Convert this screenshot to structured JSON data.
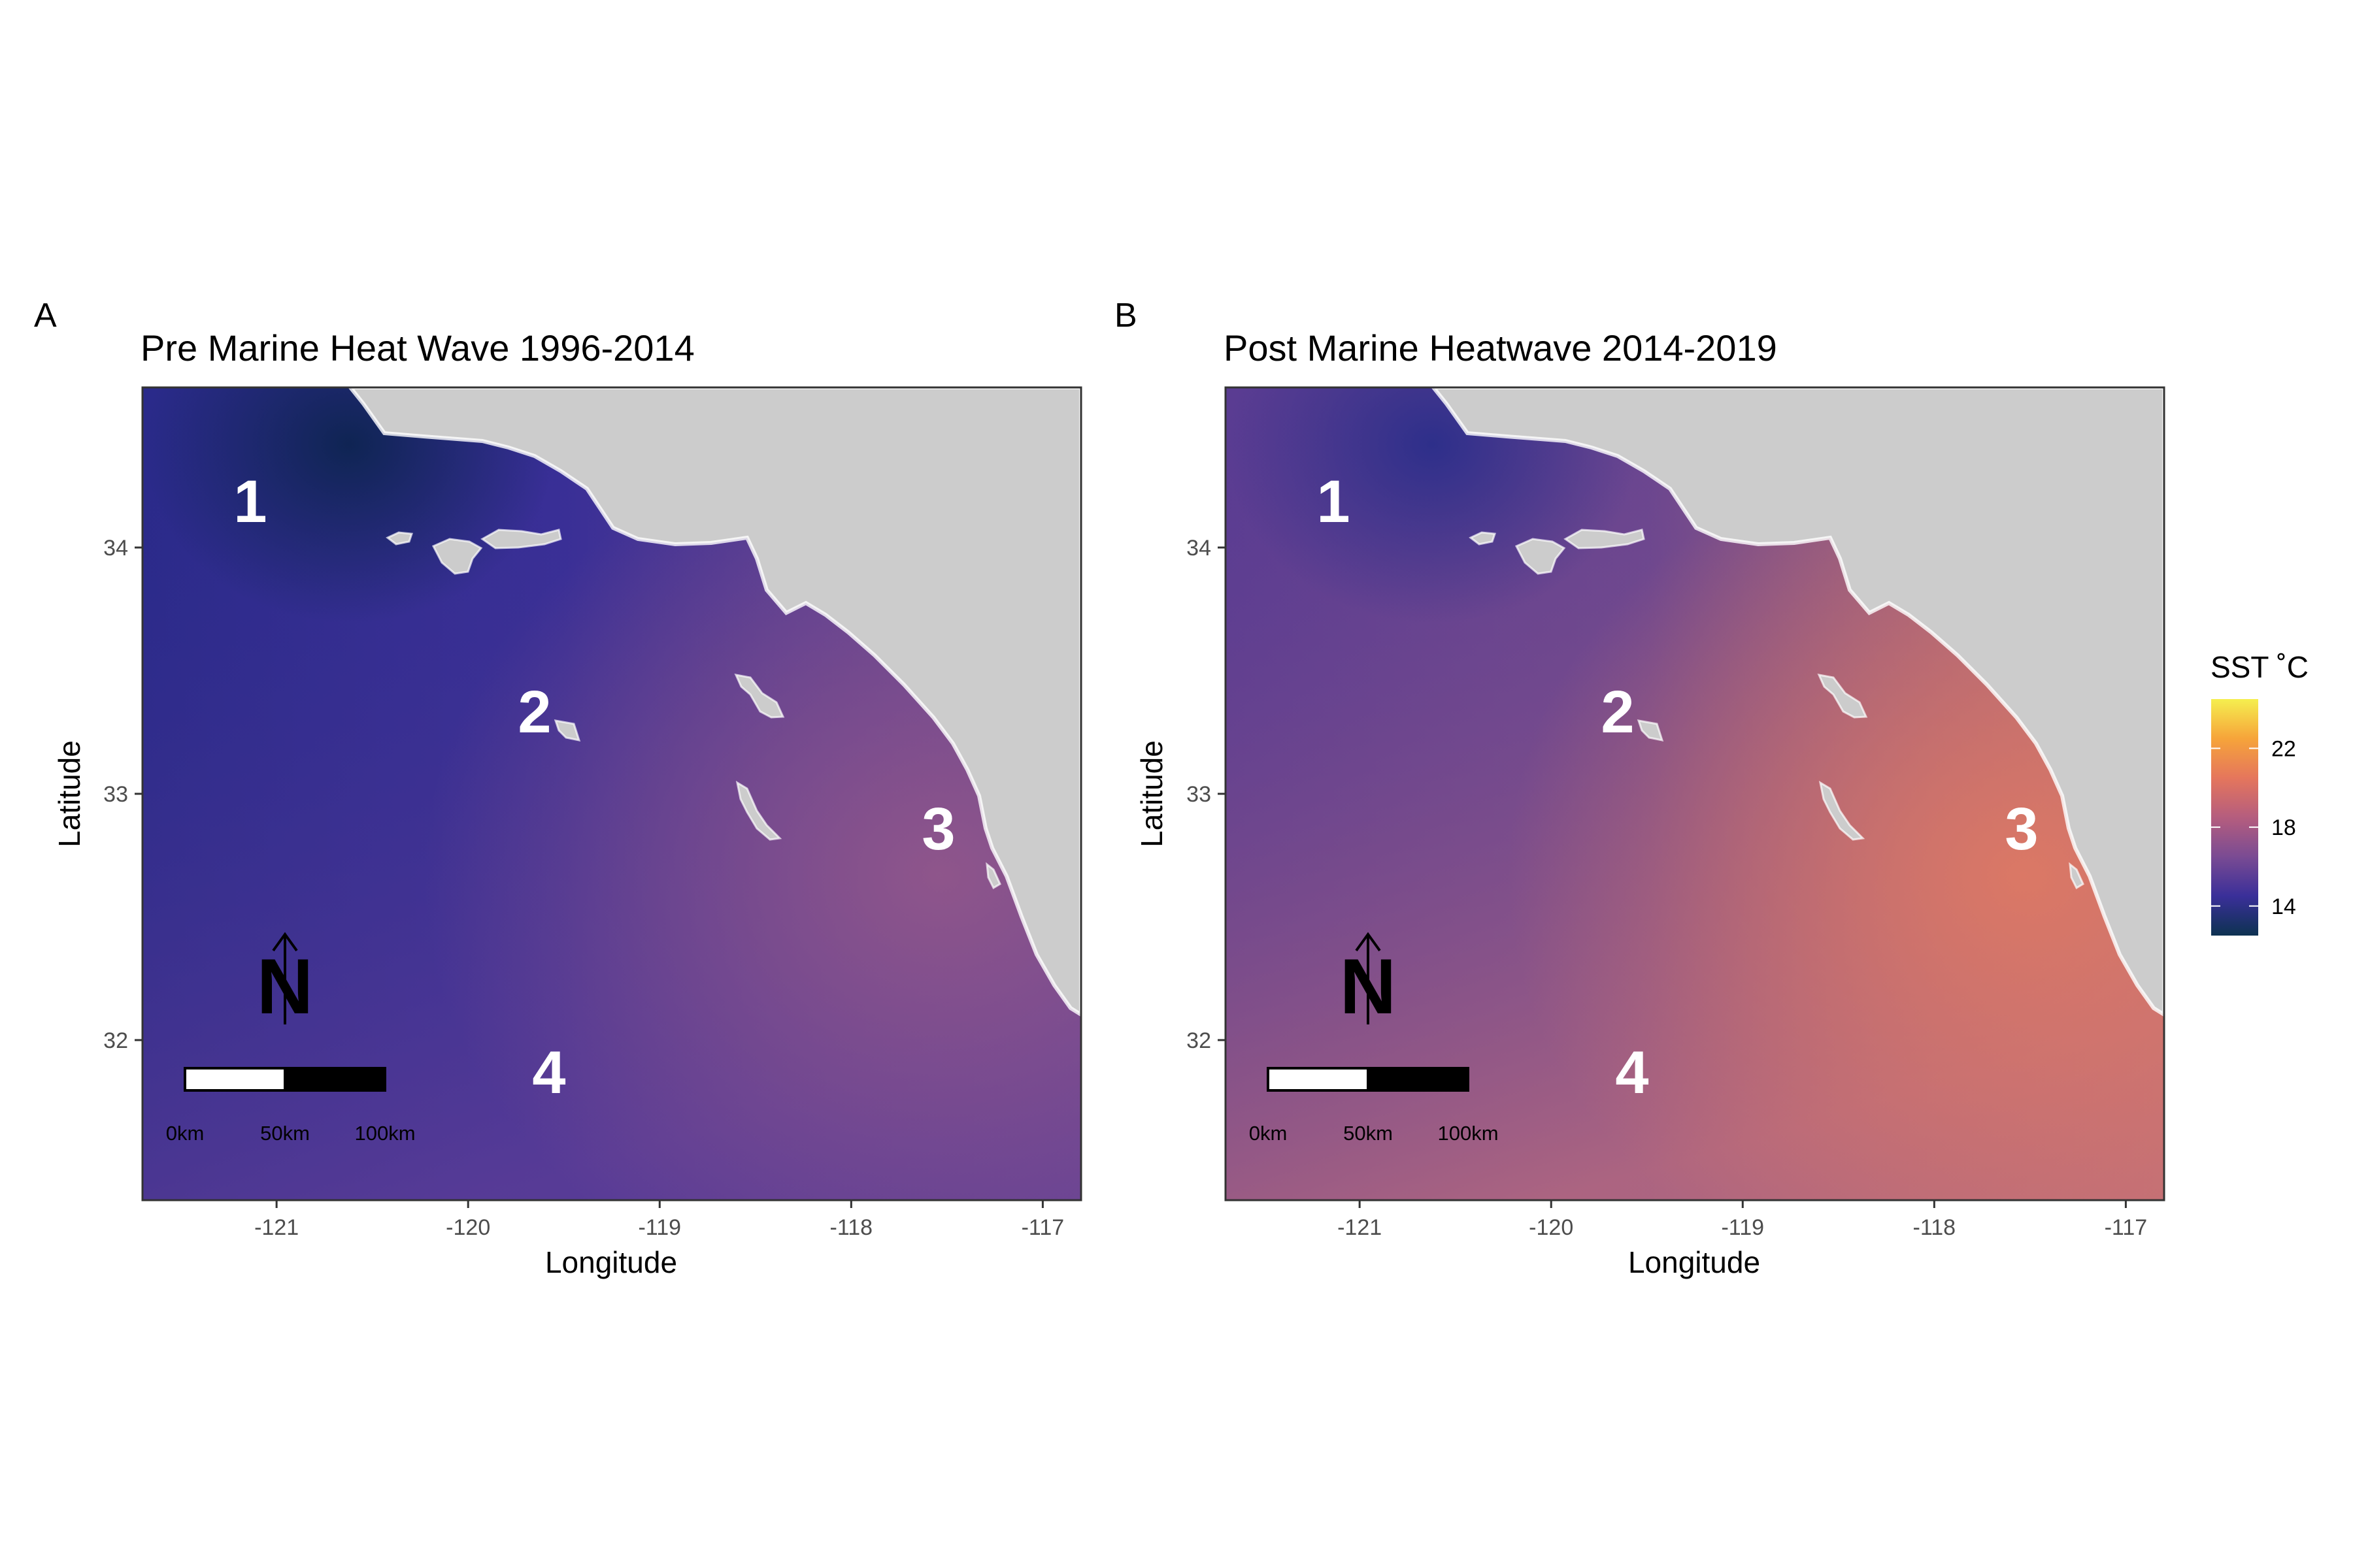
{
  "panels": [
    {
      "tag": "A",
      "title": "Pre Marine Heat Wave 1996-2014",
      "colors": {
        "northwest": "#2a2a8a",
        "southwest": "#5c3d96",
        "southeast": "#94588a",
        "northeast": "#8a5490",
        "coldspot": "#0d2450",
        "deep": "#3a2f99"
      }
    },
    {
      "tag": "B",
      "title": "Post Marine Heatwave 2014-2019",
      "colors": {
        "northwest": "#5a3c92",
        "southwest": "#b86a7e",
        "southeast": "#e07a63",
        "northeast": "#e2845f",
        "coldspot": "#2b2e8a",
        "deep": "#6a4690"
      }
    }
  ],
  "region_labels": [
    "1",
    "2",
    "3",
    "4"
  ],
  "axes": {
    "xlabel": "Longitude",
    "ylabel": "Latitude",
    "xticks": [
      "-121",
      "-120",
      "-119",
      "-118",
      "-117"
    ],
    "yticks": [
      "34",
      "33",
      "32"
    ]
  },
  "scale_bar": {
    "labels": [
      "0km",
      "50km",
      "100km"
    ]
  },
  "north_arrow": {
    "label": "N"
  },
  "legend": {
    "title": "SST ˚C",
    "ticks": [
      "22",
      "18",
      "14"
    ],
    "gradient": [
      "#f5ef4f",
      "#f6a43a",
      "#e5765c",
      "#b55d7e",
      "#7a4b93",
      "#3a2f99",
      "#0d3251"
    ]
  },
  "land_color": "#cccccc",
  "chart_data": {
    "type": "heatmap",
    "title": "",
    "xlabel": "Longitude",
    "ylabel": "Latitude",
    "xlim": [
      -121.7,
      -116.8
    ],
    "ylim": [
      31.35,
      34.65
    ],
    "legend_placement": "right",
    "colorbar": {
      "title": "SST ˚C",
      "ticks": [
        14,
        18,
        22
      ],
      "range": [
        12.5,
        24.5
      ]
    },
    "panels": [
      {
        "tag": "A",
        "title": "Pre Marine Heat Wave 1996-2014",
        "approx_sst": {
          "region_1": 14.5,
          "region_2": 15.5,
          "region_3": 18,
          "region_4": 17
        }
      },
      {
        "tag": "B",
        "title": "Post Marine Heatwave 2014-2019",
        "approx_sst": {
          "region_1": 16.5,
          "region_2": 17,
          "region_3": 20,
          "region_4": 19
        }
      }
    ]
  }
}
